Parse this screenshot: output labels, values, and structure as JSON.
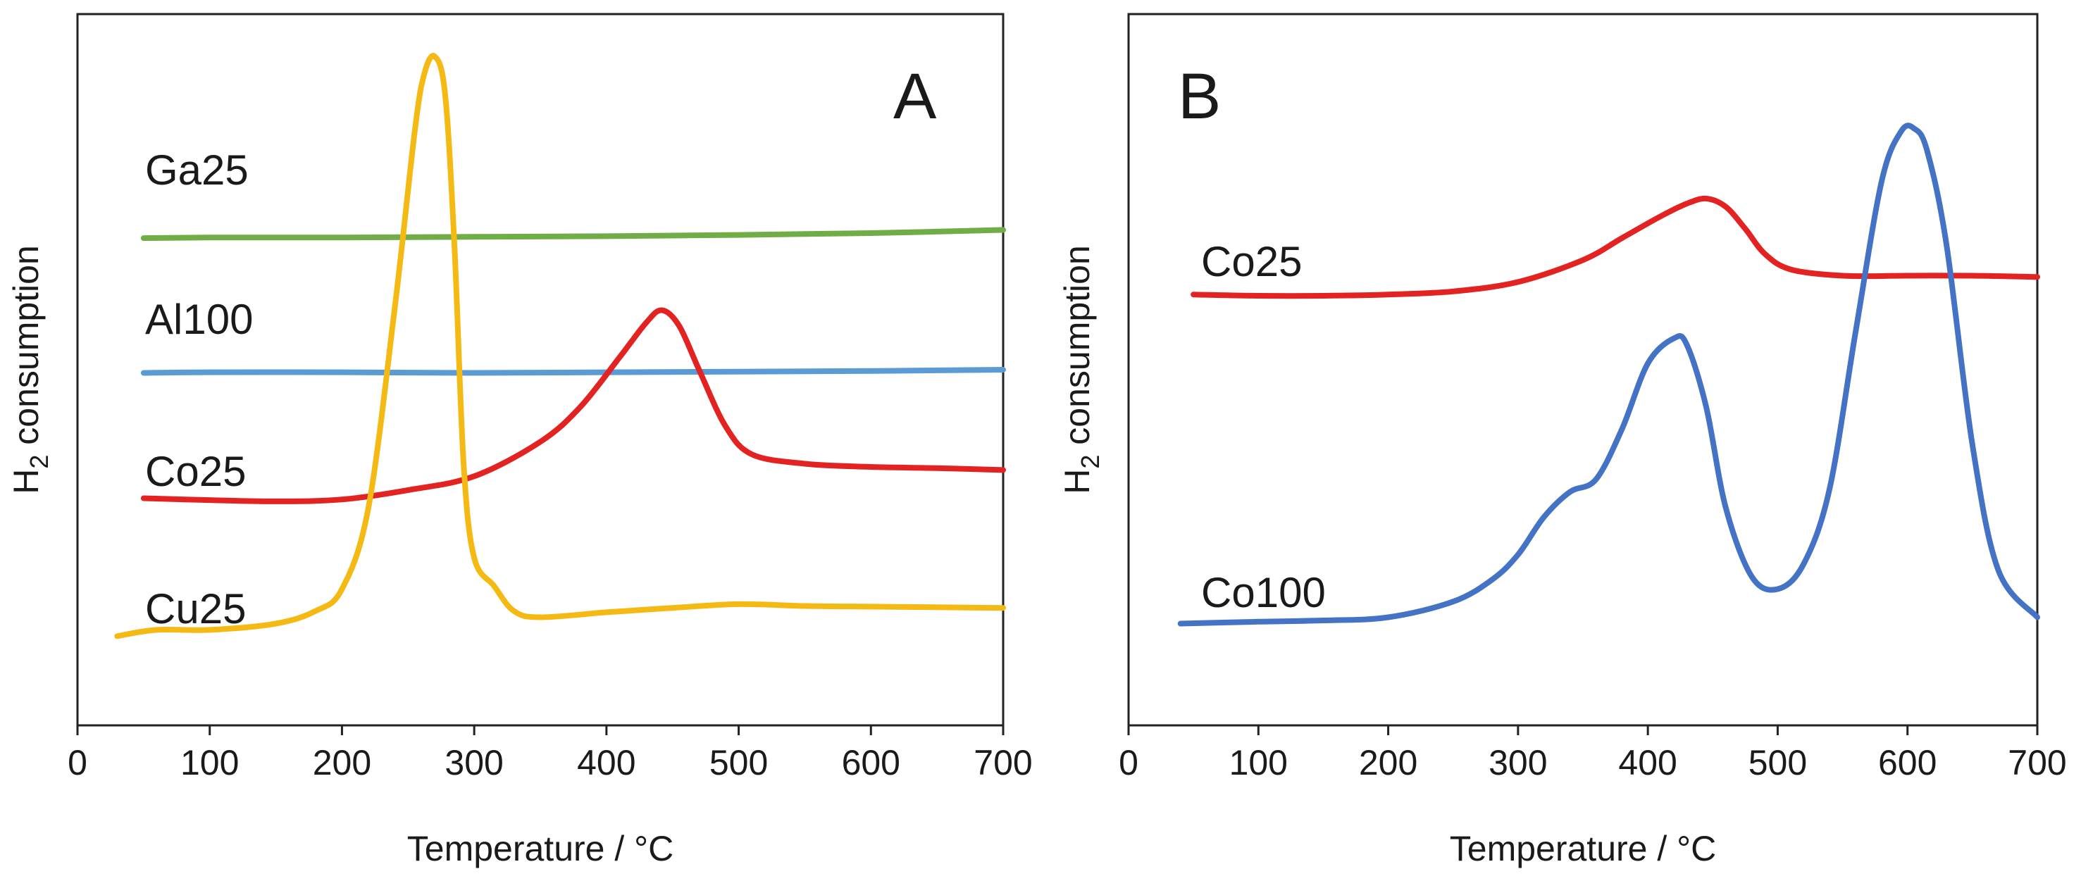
{
  "chart_data": [
    {
      "type": "line",
      "panel_label": "A",
      "xlabel": "Temperature  / °C",
      "ylabel": "H",
      "ylabel_sub": "2",
      "ylabel_rest": " consumption",
      "xlim": [
        0,
        700
      ],
      "ylim": [
        0,
        100
      ],
      "xticks": [
        "0",
        "100",
        "200",
        "300",
        "400",
        "500",
        "600",
        "700"
      ],
      "yticks_shown": false,
      "grid": false,
      "series": [
        {
          "name": "Ga25",
          "color": "#70ad47",
          "x": [
            50,
            100,
            200,
            300,
            400,
            500,
            600,
            700
          ],
          "y": [
            71.0,
            71.1,
            71.1,
            71.2,
            71.3,
            71.5,
            71.8,
            72.3
          ]
        },
        {
          "name": "Al100",
          "color": "#5b9bd5",
          "x": [
            50,
            100,
            200,
            300,
            400,
            500,
            600,
            700
          ],
          "y": [
            49.5,
            49.6,
            49.6,
            49.5,
            49.6,
            49.7,
            49.8,
            50.0
          ]
        },
        {
          "name": "Co25",
          "color": "#e32222",
          "x": [
            50,
            100,
            150,
            200,
            250,
            300,
            350,
            380,
            410,
            430,
            442,
            455,
            470,
            490,
            510,
            550,
            600,
            650,
            700
          ],
          "y": [
            29.5,
            29.2,
            29.0,
            29.3,
            30.8,
            33.0,
            38.5,
            44.0,
            52.0,
            57.5,
            59.5,
            57.0,
            50.0,
            41.0,
            36.5,
            35.0,
            34.5,
            34.3,
            34.0
          ]
        },
        {
          "name": "Cu25",
          "color": "#f4b913",
          "x": [
            30,
            60,
            100,
            150,
            180,
            200,
            220,
            240,
            255,
            262,
            270,
            278,
            285,
            292,
            300,
            315,
            330,
            350,
            400,
            450,
            500,
            550,
            600,
            650,
            700
          ],
          "y": [
            7.5,
            8.5,
            8.5,
            9.5,
            11.5,
            15.0,
            28.0,
            60.0,
            88.0,
            97.0,
            100.0,
            94.0,
            70.0,
            35.0,
            20.0,
            15.5,
            11.5,
            10.5,
            11.3,
            12.0,
            12.6,
            12.3,
            12.2,
            12.1,
            12.0
          ]
        }
      ]
    },
    {
      "type": "line",
      "panel_label": "B",
      "xlabel": "Temperature  / °C",
      "ylabel": "H",
      "ylabel_sub": "2",
      "ylabel_rest": " consumption",
      "xlim": [
        0,
        700
      ],
      "ylim": [
        0,
        100
      ],
      "xticks": [
        "0",
        "100",
        "200",
        "300",
        "400",
        "500",
        "600",
        "700"
      ],
      "yticks_shown": false,
      "grid": false,
      "series": [
        {
          "name": "Co25",
          "color": "#e32222",
          "x": [
            50,
            100,
            150,
            200,
            250,
            300,
            350,
            380,
            410,
            430,
            445,
            460,
            475,
            490,
            510,
            550,
            600,
            650,
            700
          ],
          "y": [
            62.0,
            61.8,
            61.8,
            62.0,
            62.5,
            64.0,
            67.5,
            71.0,
            74.5,
            76.5,
            77.3,
            76.0,
            72.5,
            68.5,
            66.0,
            65.0,
            65.0,
            65.0,
            64.8
          ]
        },
        {
          "name": "Co100",
          "color": "#4472c4",
          "x": [
            40,
            100,
            150,
            200,
            250,
            280,
            300,
            320,
            340,
            360,
            380,
            400,
            420,
            430,
            445,
            460,
            480,
            500,
            520,
            540,
            560,
            580,
            595,
            605,
            615,
            630,
            650,
            670,
            700
          ],
          "y": [
            9.5,
            9.8,
            10.0,
            10.5,
            13.0,
            16.5,
            20.5,
            26.5,
            30.5,
            32.5,
            40.5,
            51.0,
            55.0,
            54.0,
            44.0,
            28.0,
            17.0,
            15.0,
            19.0,
            31.0,
            56.0,
            80.0,
            88.0,
            88.5,
            85.0,
            70.0,
            38.0,
            18.0,
            10.5
          ]
        }
      ]
    }
  ]
}
